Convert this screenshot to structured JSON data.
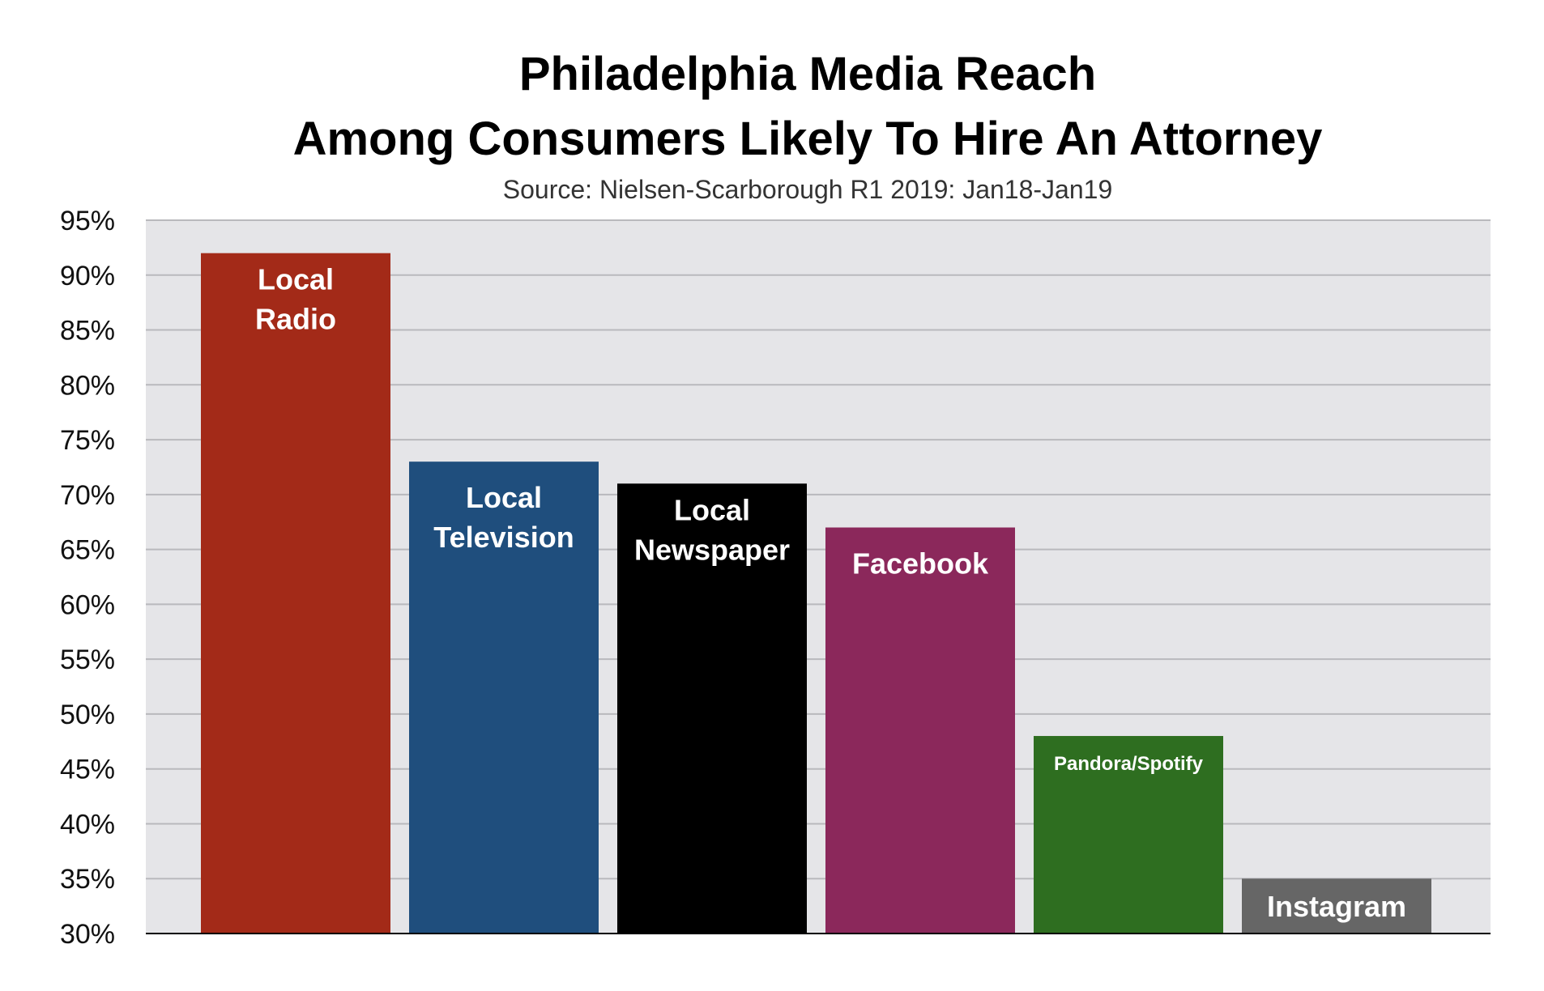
{
  "chart_data": {
    "type": "bar",
    "title_lines": [
      "Philadelphia Media Reach",
      "Among Consumers Likely To Hire An Attorney"
    ],
    "subtitle": "Source: Nielsen-Scarborough R1 2019: Jan18-Jan19",
    "xlabel": "",
    "ylabel": "",
    "ylim": [
      30,
      95
    ],
    "y_ticks": [
      "30%",
      "35%",
      "40%",
      "45%",
      "50%",
      "55%",
      "60%",
      "65%",
      "70%",
      "75%",
      "80%",
      "85%",
      "90%",
      "95%"
    ],
    "grid": true,
    "legend": "none",
    "categories": [
      "Local Radio",
      "Local Television",
      "Local Newspaper",
      "Facebook",
      "Pandora/Spotify",
      "Instagram"
    ],
    "bar_labels": [
      [
        "Local",
        "Radio"
      ],
      [
        "Local",
        "Television"
      ],
      [
        "Local",
        "Newspaper"
      ],
      [
        "Facebook"
      ],
      [
        "Pandora/Spotify"
      ],
      [
        "Instagram"
      ]
    ],
    "values": [
      92,
      73,
      71,
      67,
      48,
      35
    ],
    "colors": [
      "#a32a18",
      "#1f4e7d",
      "#000000",
      "#8b285b",
      "#2e6e20",
      "#666666"
    ],
    "plot_background": "#e5e5e8",
    "grid_color": "#b9b9bd"
  }
}
